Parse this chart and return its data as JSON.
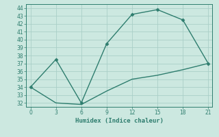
{
  "line1_x": [
    0,
    3,
    6,
    9,
    12,
    15,
    18,
    21
  ],
  "line1_y": [
    34.0,
    37.5,
    32.0,
    39.5,
    43.2,
    43.8,
    42.5,
    37.0
  ],
  "line2_x": [
    0,
    3,
    6,
    9,
    12,
    15,
    18,
    21
  ],
  "line2_y": [
    34.0,
    32.0,
    31.8,
    33.5,
    35.0,
    35.5,
    36.2,
    37.0
  ],
  "line_color": "#2e7d6e",
  "bg_color": "#cce8e0",
  "grid_color": "#aacfc8",
  "xlabel": "Humidex (Indice chaleur)",
  "ylim": [
    31.5,
    44.5
  ],
  "xlim": [
    -0.5,
    21.5
  ],
  "yticks": [
    32,
    33,
    34,
    35,
    36,
    37,
    38,
    39,
    40,
    41,
    42,
    43,
    44
  ],
  "xticks": [
    0,
    3,
    6,
    9,
    12,
    15,
    18,
    21
  ],
  "marker": "D",
  "markersize": 2.5,
  "linewidth": 1.0,
  "font_family": "monospace",
  "tick_fontsize": 5.5,
  "xlabel_fontsize": 6.5
}
